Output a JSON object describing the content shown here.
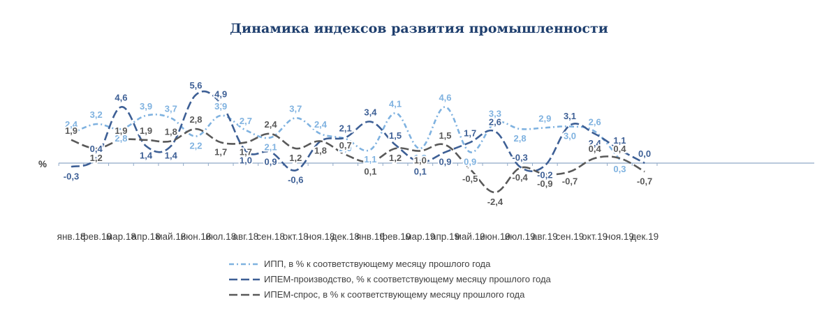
{
  "chart_data": {
    "type": "line",
    "title": "Динамика индексов развития промышленности",
    "ylabel": "%",
    "categories": [
      "янв.18",
      "фев.18",
      "мар.18",
      "апр.18",
      "май.18",
      "июн.18",
      "июл.18",
      "авг.18",
      "сен.18",
      "окт.18",
      "ноя.18",
      "дек.18",
      "янв.19",
      "фев.19",
      "мар.19",
      "апр.19",
      "май.19",
      "июн.19",
      "июл.19",
      "авг.19",
      "сен.19",
      "окт.19",
      "ноя.19",
      "дек.19"
    ],
    "ylim": [
      -3,
      6.5
    ],
    "grid": false,
    "legend_position": "bottom",
    "series": [
      {
        "name": "ИПП, в % к соответствующему месяцу прошлого года",
        "color": "#7fb2e0",
        "dash": "dash-dot",
        "values": [
          2.4,
          3.2,
          2.8,
          3.9,
          3.7,
          2.2,
          3.9,
          2.7,
          2.1,
          3.7,
          2.4,
          2.0,
          1.1,
          4.1,
          1.2,
          4.6,
          0.9,
          3.3,
          2.8,
          2.9,
          3.0,
          2.6,
          0.3,
          null
        ],
        "labels": [
          "2,4",
          "3,2",
          "2,8",
          "3,9",
          "3,7",
          "2,2",
          "3,9",
          "2,7",
          "2,1",
          "3,7",
          "2,4",
          "2,0",
          "1,1",
          "4,1",
          "1,2",
          "4,6",
          "0,9",
          "3,3",
          "2,8",
          "2,9",
          "3,0",
          "2,6",
          "0,3",
          ""
        ]
      },
      {
        "name": "ИПЕМ-производство,  % к соответствующему месяцу прошлого года",
        "color": "#3d5f95",
        "dash": "long-dash",
        "values": [
          -0.3,
          0.4,
          4.6,
          1.4,
          1.4,
          5.6,
          4.9,
          1.0,
          0.9,
          -0.6,
          1.8,
          2.1,
          3.4,
          1.5,
          0.1,
          0.9,
          1.7,
          2.6,
          -0.3,
          -0.2,
          3.1,
          2.4,
          1.1,
          0.0
        ],
        "labels": [
          "-0,3",
          "0,4",
          "4,6",
          "1,4",
          "1,4",
          "5,6",
          "4,9",
          "1,0",
          "0,9",
          "-0,6",
          "1,8",
          "2,1",
          "3,4",
          "1,5",
          "0,1",
          "0,9",
          "1,7",
          "2,6",
          "-0,3",
          "-0,2",
          "3,1",
          "2,4",
          "1,1",
          "0,0"
        ]
      },
      {
        "name": "ИПЕМ-спрос, в % к соответствующему месяцу прошлого года",
        "color": "#595959",
        "dash": "long-dash",
        "values": [
          1.9,
          1.2,
          1.9,
          1.9,
          1.8,
          2.8,
          1.7,
          1.7,
          2.4,
          1.2,
          1.8,
          0.7,
          0.1,
          1.2,
          1.0,
          1.5,
          -0.5,
          -2.4,
          -0.4,
          -0.9,
          -0.7,
          0.4,
          0.4,
          -0.7
        ],
        "labels": [
          "1,9",
          "1,2",
          "1,9",
          "1,9",
          "1,8",
          "2,8",
          "1,7",
          "1,7",
          "2,4",
          "1,2",
          "1,8",
          "0,7",
          "0,1",
          "1,2",
          "1,0",
          "1,5",
          "-0,5",
          "-2,4",
          "-0,4",
          "-0,9",
          "-0,7",
          "0,4",
          "0,4",
          "-0,7"
        ]
      }
    ]
  }
}
